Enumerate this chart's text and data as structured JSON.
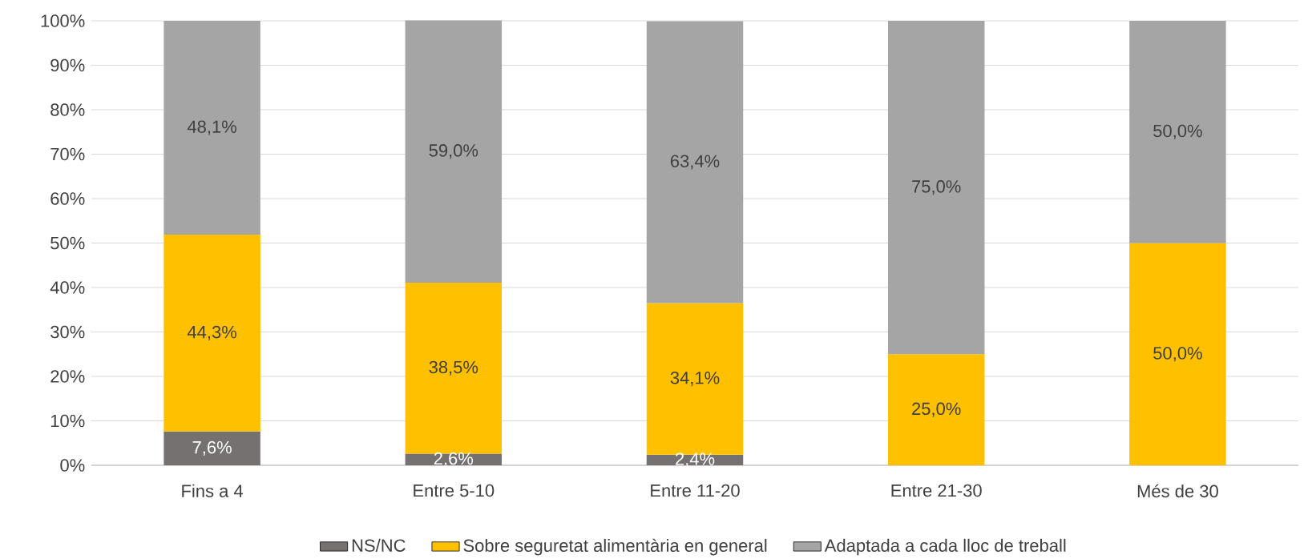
{
  "chart_data": {
    "type": "bar",
    "stacked": true,
    "categories": [
      "Fins a 4",
      "Entre 5-10",
      "Entre 11-20",
      "Entre 21-30",
      "Més de 30"
    ],
    "series": [
      {
        "name": "NS/NC",
        "color": "#767171",
        "values": [
          7.6,
          2.6,
          2.4,
          null,
          null
        ],
        "value_labels": [
          "7,6%",
          "2,6%",
          "2,4%",
          null,
          null
        ]
      },
      {
        "name": "Sobre seguretat alimentària en general",
        "color": "#ffc000",
        "values": [
          44.3,
          38.5,
          34.1,
          25.0,
          50.0
        ],
        "value_labels": [
          "44,3%",
          "38,5%",
          "34,1%",
          "25,0%",
          "50,0%"
        ]
      },
      {
        "name": "Adaptada a cada lloc de treball",
        "color": "#a5a5a5",
        "values": [
          48.1,
          59.0,
          63.4,
          75.0,
          50.0
        ],
        "value_labels": [
          "48,1%",
          "59,0%",
          "63,4%",
          "75,0%",
          "50,0%"
        ]
      }
    ],
    "ylim": [
      0,
      100
    ],
    "yticks": [
      {
        "value": 0,
        "label": "0%"
      },
      {
        "value": 10,
        "label": "10%"
      },
      {
        "value": 20,
        "label": "20%"
      },
      {
        "value": 30,
        "label": "30%"
      },
      {
        "value": 40,
        "label": "40%"
      },
      {
        "value": 50,
        "label": "50%"
      },
      {
        "value": 60,
        "label": "60%"
      },
      {
        "value": 70,
        "label": "70%"
      },
      {
        "value": 80,
        "label": "80%"
      },
      {
        "value": 90,
        "label": "90%"
      },
      {
        "value": 100,
        "label": "100%"
      }
    ],
    "grid": "y",
    "legend": "bottom"
  }
}
